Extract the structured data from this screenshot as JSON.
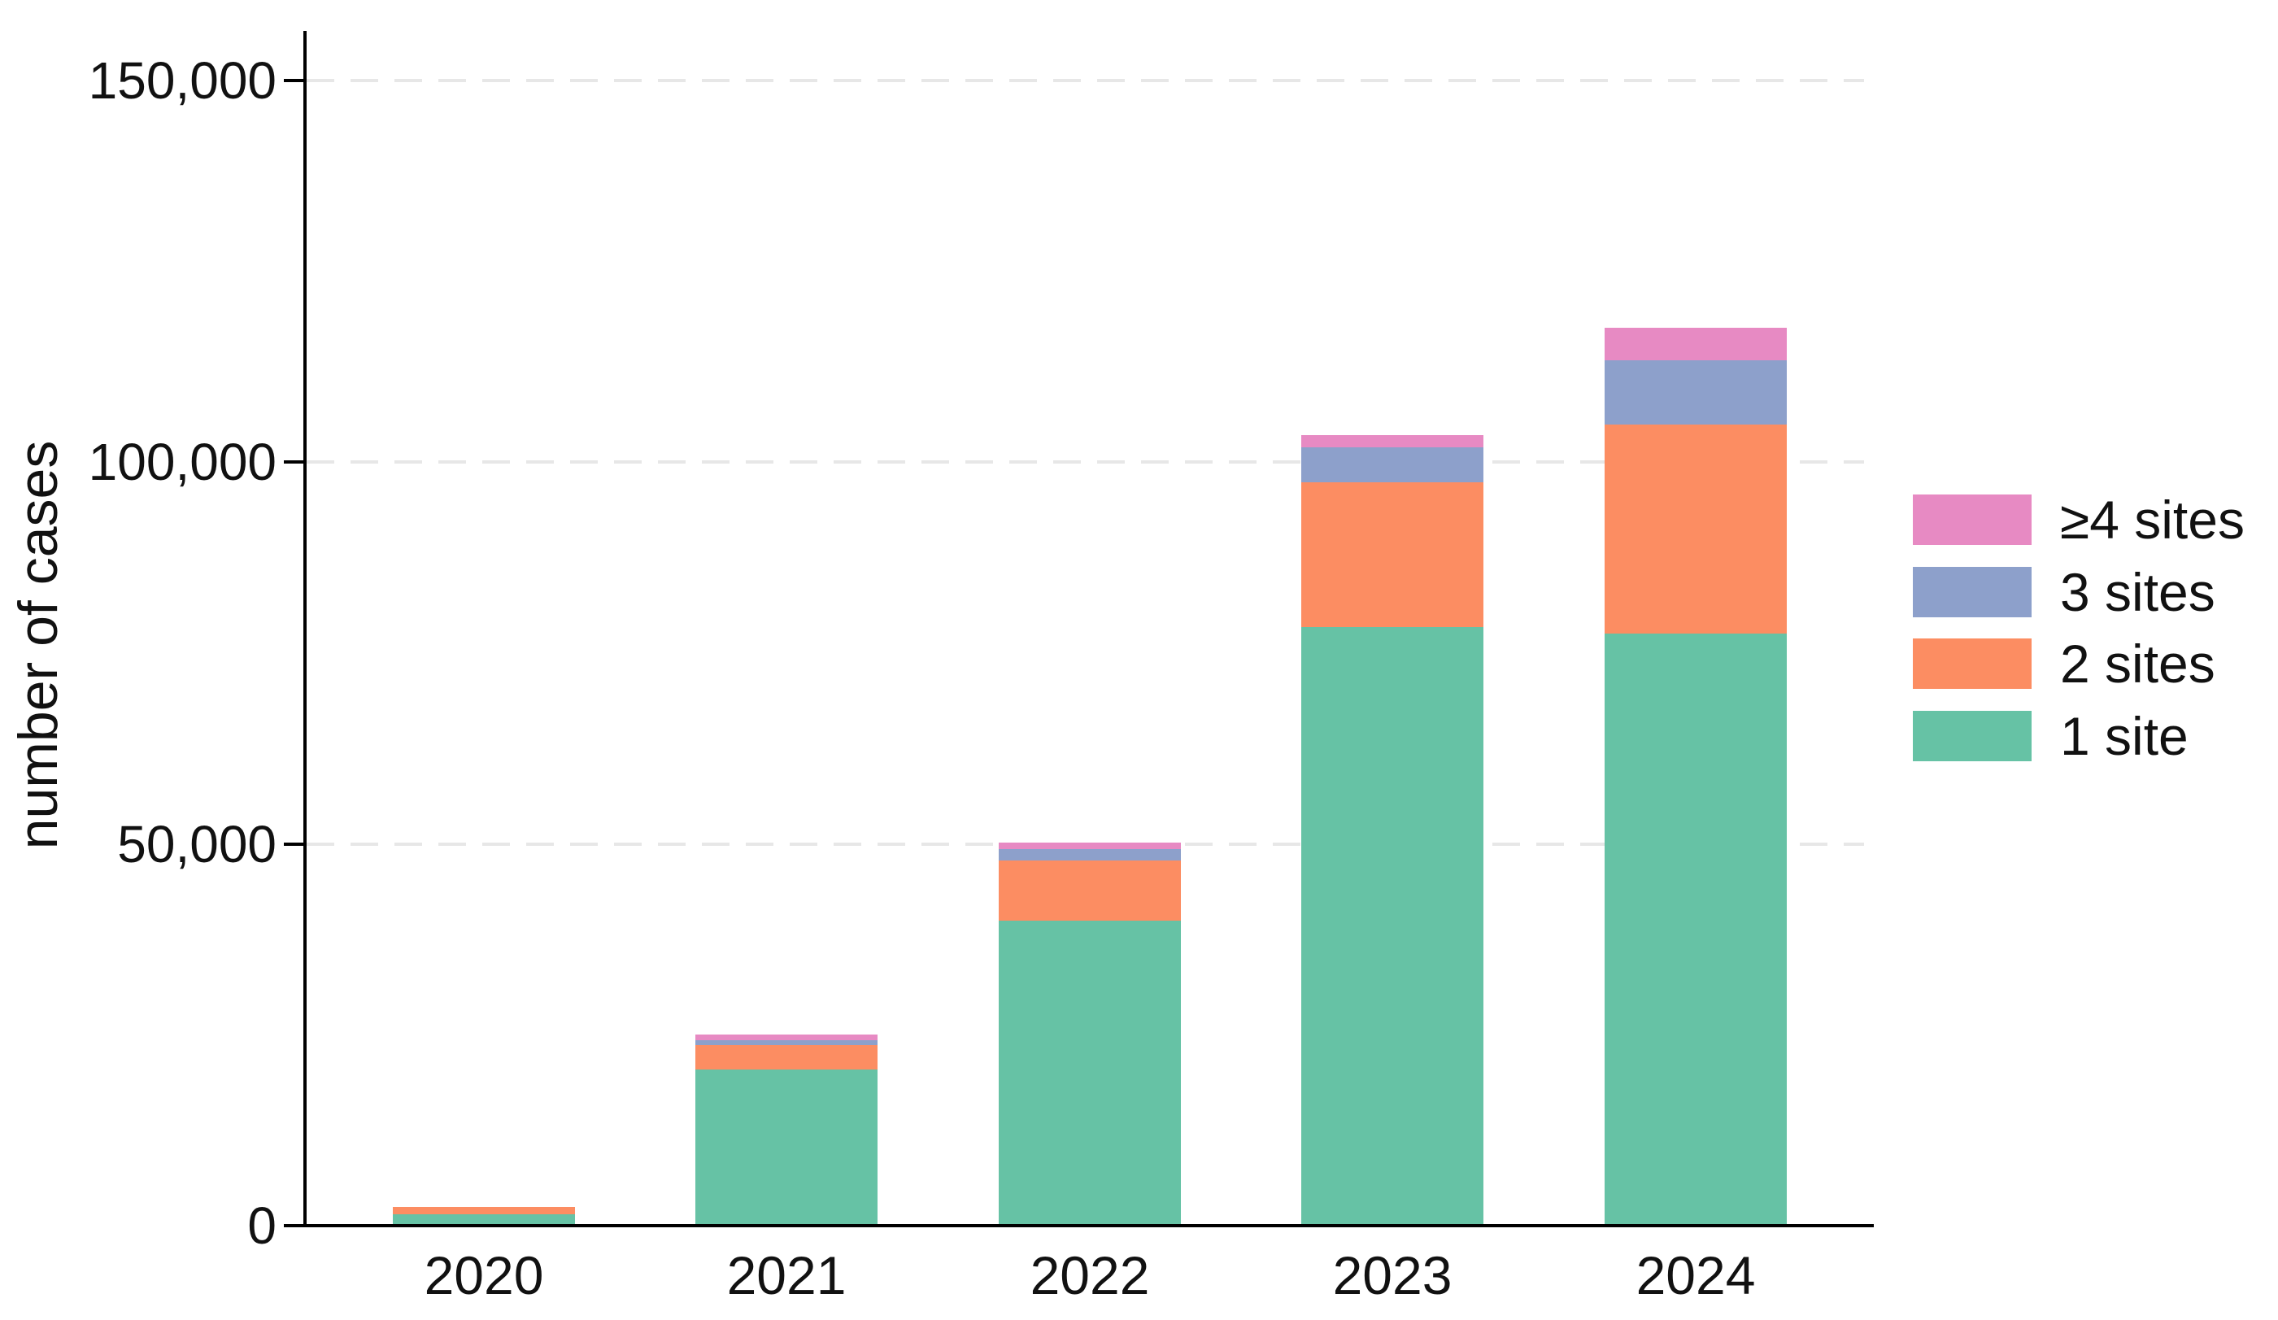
{
  "chart_data": {
    "type": "bar",
    "stacked": true,
    "title": "",
    "xlabel": "",
    "ylabel": "number of cases",
    "categories": [
      "2020",
      "2021",
      "2022",
      "2023",
      "2024"
    ],
    "series": [
      {
        "name": "1 site",
        "color": "#66c2a5",
        "values": [
          1500,
          20500,
          39900,
          78400,
          77600
        ]
      },
      {
        "name": "2 sites",
        "color": "#fc8d62",
        "values": [
          1000,
          3200,
          7900,
          19000,
          27300
        ]
      },
      {
        "name": "3 sites",
        "color": "#8da0cb",
        "values": [
          0,
          600,
          1500,
          4500,
          8400
        ]
      },
      {
        "name": "≥4 sites",
        "color": "#e78ac3",
        "values": [
          0,
          700,
          900,
          1600,
          4300
        ]
      }
    ],
    "ylim": [
      0,
      157000
    ],
    "yticks": [
      0,
      50000,
      100000,
      150000
    ],
    "ytick_labels": [
      "0",
      "50,000",
      "100,000",
      "150,000"
    ],
    "grid": "horizontal dashed gridlines at 50,000 / 100,000 / 150,000",
    "grid_color": "#e7e7e7",
    "axis_color": "#000000",
    "legend_position": "right",
    "legend_order_top_to_bottom": [
      "≥4 sites",
      "3 sites",
      "2 sites",
      "1 site"
    ]
  }
}
